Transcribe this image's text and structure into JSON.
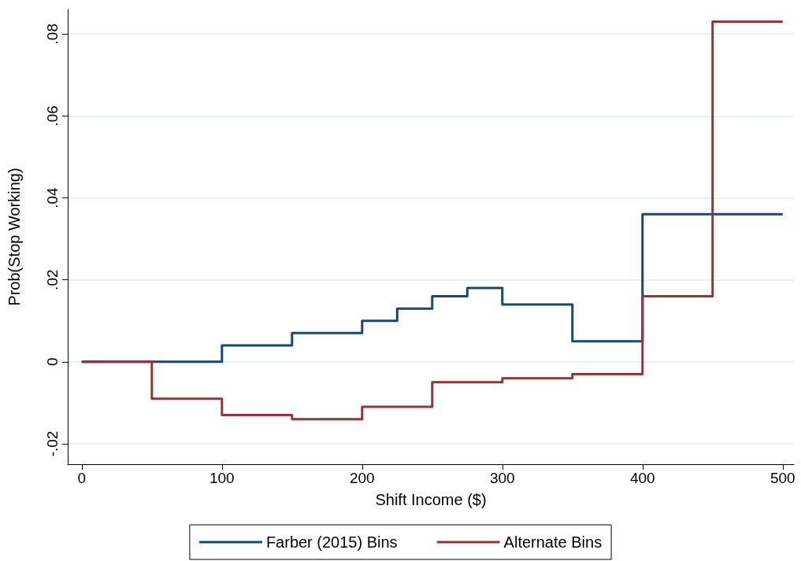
{
  "chart_data": {
    "type": "step",
    "xlabel": "Shift Income ($)",
    "ylabel": "Prob(Stop Working)",
    "xlim": [
      -10,
      508
    ],
    "xticks": [
      0,
      100,
      200,
      300,
      400,
      500
    ],
    "ylim": [
      -0.025,
      0.086
    ],
    "yticks": [
      {
        "value": -0.02,
        "label": "-.02"
      },
      {
        "value": 0,
        "label": "0"
      },
      {
        "value": 0.02,
        "label": ".02"
      },
      {
        "value": 0.04,
        "label": ".04"
      },
      {
        "value": 0.06,
        "label": ".06"
      },
      {
        "value": 0.08,
        "label": ".08"
      }
    ],
    "grid": "y",
    "legend": "bottom",
    "marker": "none",
    "line_style": "solid",
    "series": [
      {
        "name": "Farber (2015) Bins",
        "color": "#1a476f",
        "x": [
          0,
          50,
          100,
          150,
          200,
          225,
          250,
          275,
          300,
          350,
          400,
          500
        ],
        "values": [
          0,
          0,
          0.004,
          0.007,
          0.01,
          0.013,
          0.016,
          0.018,
          0.014,
          0.005,
          0.036,
          0.036
        ]
      },
      {
        "name": "Alternate Bins",
        "color": "#90353b",
        "x": [
          0,
          50,
          100,
          150,
          200,
          225,
          250,
          275,
          300,
          350,
          400,
          450,
          500
        ],
        "values": [
          0,
          -0.009,
          -0.013,
          -0.014,
          -0.011,
          -0.011,
          -0.005,
          -0.005,
          -0.004,
          -0.003,
          0.016,
          0.083,
          0.083
        ]
      }
    ]
  }
}
